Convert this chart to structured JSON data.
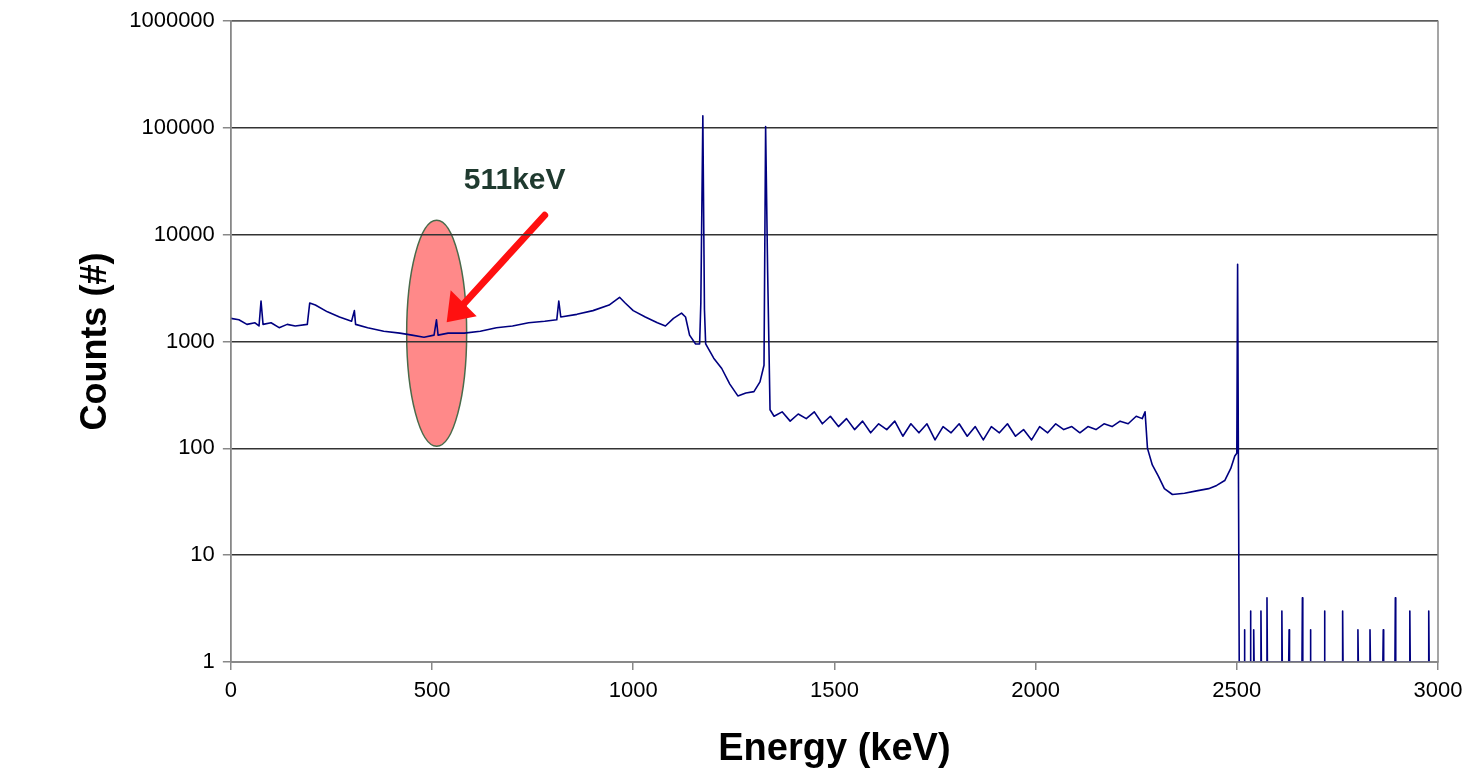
{
  "chart_data": {
    "type": "line",
    "xlabel": "Energy (keV)",
    "ylabel": "Counts (#)",
    "log": "y",
    "grid": "y",
    "legend": false,
    "marker": "none",
    "line_style": "solid",
    "xlim": [
      0,
      3000
    ],
    "xticks": [
      0,
      500,
      1000,
      1500,
      2000,
      2500,
      3000
    ],
    "ylim": [
      1,
      1000000
    ],
    "yticks": [
      1,
      10,
      100,
      1000,
      10000,
      100000,
      1000000
    ],
    "annotations": [
      "511keV"
    ],
    "series": [
      {
        "color": "#000080",
        "x": [
          0,
          20,
          40,
          60,
          70,
          75,
          80,
          100,
          120,
          140,
          160,
          190,
          196,
          210,
          240,
          270,
          300,
          307,
          310,
          340,
          380,
          420,
          450,
          480,
          505,
          511,
          515,
          540,
          580,
          620,
          660,
          700,
          740,
          780,
          810,
          815,
          820,
          860,
          900,
          940,
          966,
          980,
          1000,
          1030,
          1060,
          1080,
          1100,
          1120,
          1130,
          1140,
          1155,
          1165,
          1168,
          1173,
          1177,
          1180,
          1200,
          1220,
          1240,
          1260,
          1280,
          1300,
          1315,
          1325,
          1329,
          1334,
          1340,
          1350,
          1370,
          1390,
          1410,
          1430,
          1450,
          1470,
          1490,
          1510,
          1530,
          1550,
          1570,
          1590,
          1610,
          1630,
          1650,
          1670,
          1690,
          1710,
          1730,
          1750,
          1770,
          1790,
          1810,
          1830,
          1850,
          1870,
          1890,
          1910,
          1930,
          1950,
          1970,
          1990,
          2010,
          2030,
          2050,
          2070,
          2090,
          2110,
          2130,
          2150,
          2170,
          2190,
          2210,
          2230,
          2250,
          2265,
          2272,
          2278,
          2290,
          2305,
          2320,
          2340,
          2370,
          2400,
          2430,
          2450,
          2470,
          2485,
          2495,
          2500,
          2502,
          2506,
          2518,
          2519,
          2520,
          2533,
          2534,
          2535,
          2541,
          2542,
          2543,
          2559,
          2560,
          2561,
          2574,
          2575,
          2576,
          2611,
          2612,
          2613,
          2629,
          2630,
          2631,
          2662,
          2663,
          2664,
          2682,
          2683,
          2684,
          2717,
          2718,
          2719,
          2762,
          2763,
          2764,
          2800,
          2801,
          2802,
          2830,
          2831,
          2832,
          2863,
          2864,
          2865,
          2893,
          2894,
          2895,
          2929,
          2930,
          2931,
          2976,
          2977,
          2978
        ],
        "values": [
          1650,
          1600,
          1450,
          1500,
          1400,
          2400,
          1450,
          1500,
          1350,
          1450,
          1400,
          1450,
          2300,
          2200,
          1900,
          1700,
          1550,
          1950,
          1450,
          1350,
          1250,
          1200,
          1150,
          1100,
          1150,
          1600,
          1150,
          1200,
          1200,
          1250,
          1350,
          1400,
          1500,
          1550,
          1600,
          2400,
          1700,
          1800,
          1950,
          2200,
          2600,
          2300,
          1950,
          1700,
          1500,
          1400,
          1650,
          1850,
          1700,
          1150,
          950,
          950,
          2300,
          130000,
          2000,
          950,
          700,
          560,
          400,
          310,
          330,
          340,
          420,
          600,
          103000,
          4600,
          230,
          200,
          220,
          180,
          210,
          190,
          220,
          170,
          200,
          160,
          190,
          150,
          180,
          140,
          170,
          150,
          180,
          130,
          170,
          140,
          170,
          120,
          160,
          140,
          170,
          130,
          160,
          120,
          160,
          140,
          170,
          130,
          150,
          120,
          160,
          140,
          170,
          150,
          160,
          140,
          160,
          150,
          170,
          160,
          180,
          170,
          200,
          190,
          220,
          100,
          70,
          55,
          42,
          37,
          38,
          40,
          42,
          45,
          50,
          65,
          85,
          90,
          5300,
          1,
          1,
          2,
          1,
          1,
          3,
          1,
          1,
          2,
          1,
          1,
          3,
          1,
          1,
          4,
          1,
          1,
          3,
          1,
          1,
          2,
          1,
          1,
          4,
          1,
          1,
          2,
          1,
          1,
          3,
          1,
          1,
          3,
          1,
          1,
          2,
          1,
          1,
          2,
          1,
          1,
          2,
          1,
          1,
          4,
          1,
          1,
          3,
          1,
          1,
          3,
          1
        ]
      }
    ]
  }
}
